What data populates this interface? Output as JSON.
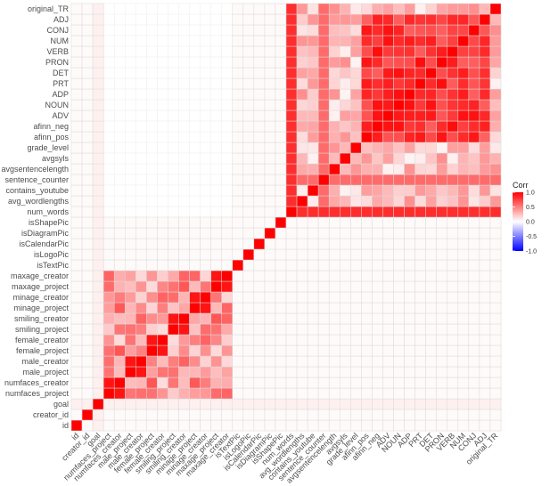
{
  "chart_data": {
    "type": "heatmap",
    "variables": [
      "id",
      "creator_id",
      "goal",
      "numfaces_project",
      "numfaces_creator",
      "male_project",
      "male_creator",
      "female_project",
      "female_creator",
      "smiling_project",
      "smiling_creator",
      "minage_project",
      "minage_creator",
      "maxage_project",
      "maxage_creator",
      "isTextPic",
      "isLogoPic",
      "isCalendarPic",
      "isDiagramPic",
      "isShapePic",
      "num_words",
      "avg_wordlengths",
      "contains_youtube",
      "sentence_counter",
      "avgsentencelength",
      "avgsyls",
      "grade_level",
      "afinn_pos",
      "afinn_neg",
      "ADV",
      "NOUN",
      "ADP",
      "PRT",
      "DET",
      "PRON",
      "VERB",
      "NUM",
      "CONJ",
      "ADJ",
      "original_TR"
    ],
    "groups": {
      "A": [
        "numfaces_project",
        "numfaces_creator",
        "male_project",
        "male_creator",
        "female_project",
        "female_creator",
        "smiling_project",
        "smiling_creator",
        "minage_project",
        "minage_creator",
        "maxage_project",
        "maxage_creator"
      ],
      "B": [
        "num_words",
        "avg_wordlengths",
        "contains_youtube",
        "sentence_counter",
        "avgsentencelength",
        "avgsyls",
        "grade_level",
        "afinn_pos",
        "afinn_neg",
        "ADV",
        "NOUN",
        "ADP",
        "PRT",
        "DET",
        "PRON",
        "VERB",
        "NUM",
        "CONJ",
        "ADJ",
        "original_TR"
      ],
      "POS": [
        "afinn_pos",
        "afinn_neg",
        "ADV",
        "NOUN",
        "ADP",
        "PRT",
        "DET",
        "PRON",
        "VERB",
        "NUM",
        "CONJ",
        "ADJ"
      ]
    },
    "legend": {
      "title": "Corr",
      "ticks": [
        1.0,
        0.5,
        0.0,
        -0.5,
        -1.0
      ],
      "tick_labels": [
        "1.0",
        "0.5",
        "0.0",
        "-0.5",
        "-1.0"
      ],
      "colors": {
        "high": "#ff0000",
        "mid": "#ffffff",
        "low": "#0000ff"
      },
      "placement": "right"
    },
    "upper_left_blank": true,
    "grid": true
  }
}
